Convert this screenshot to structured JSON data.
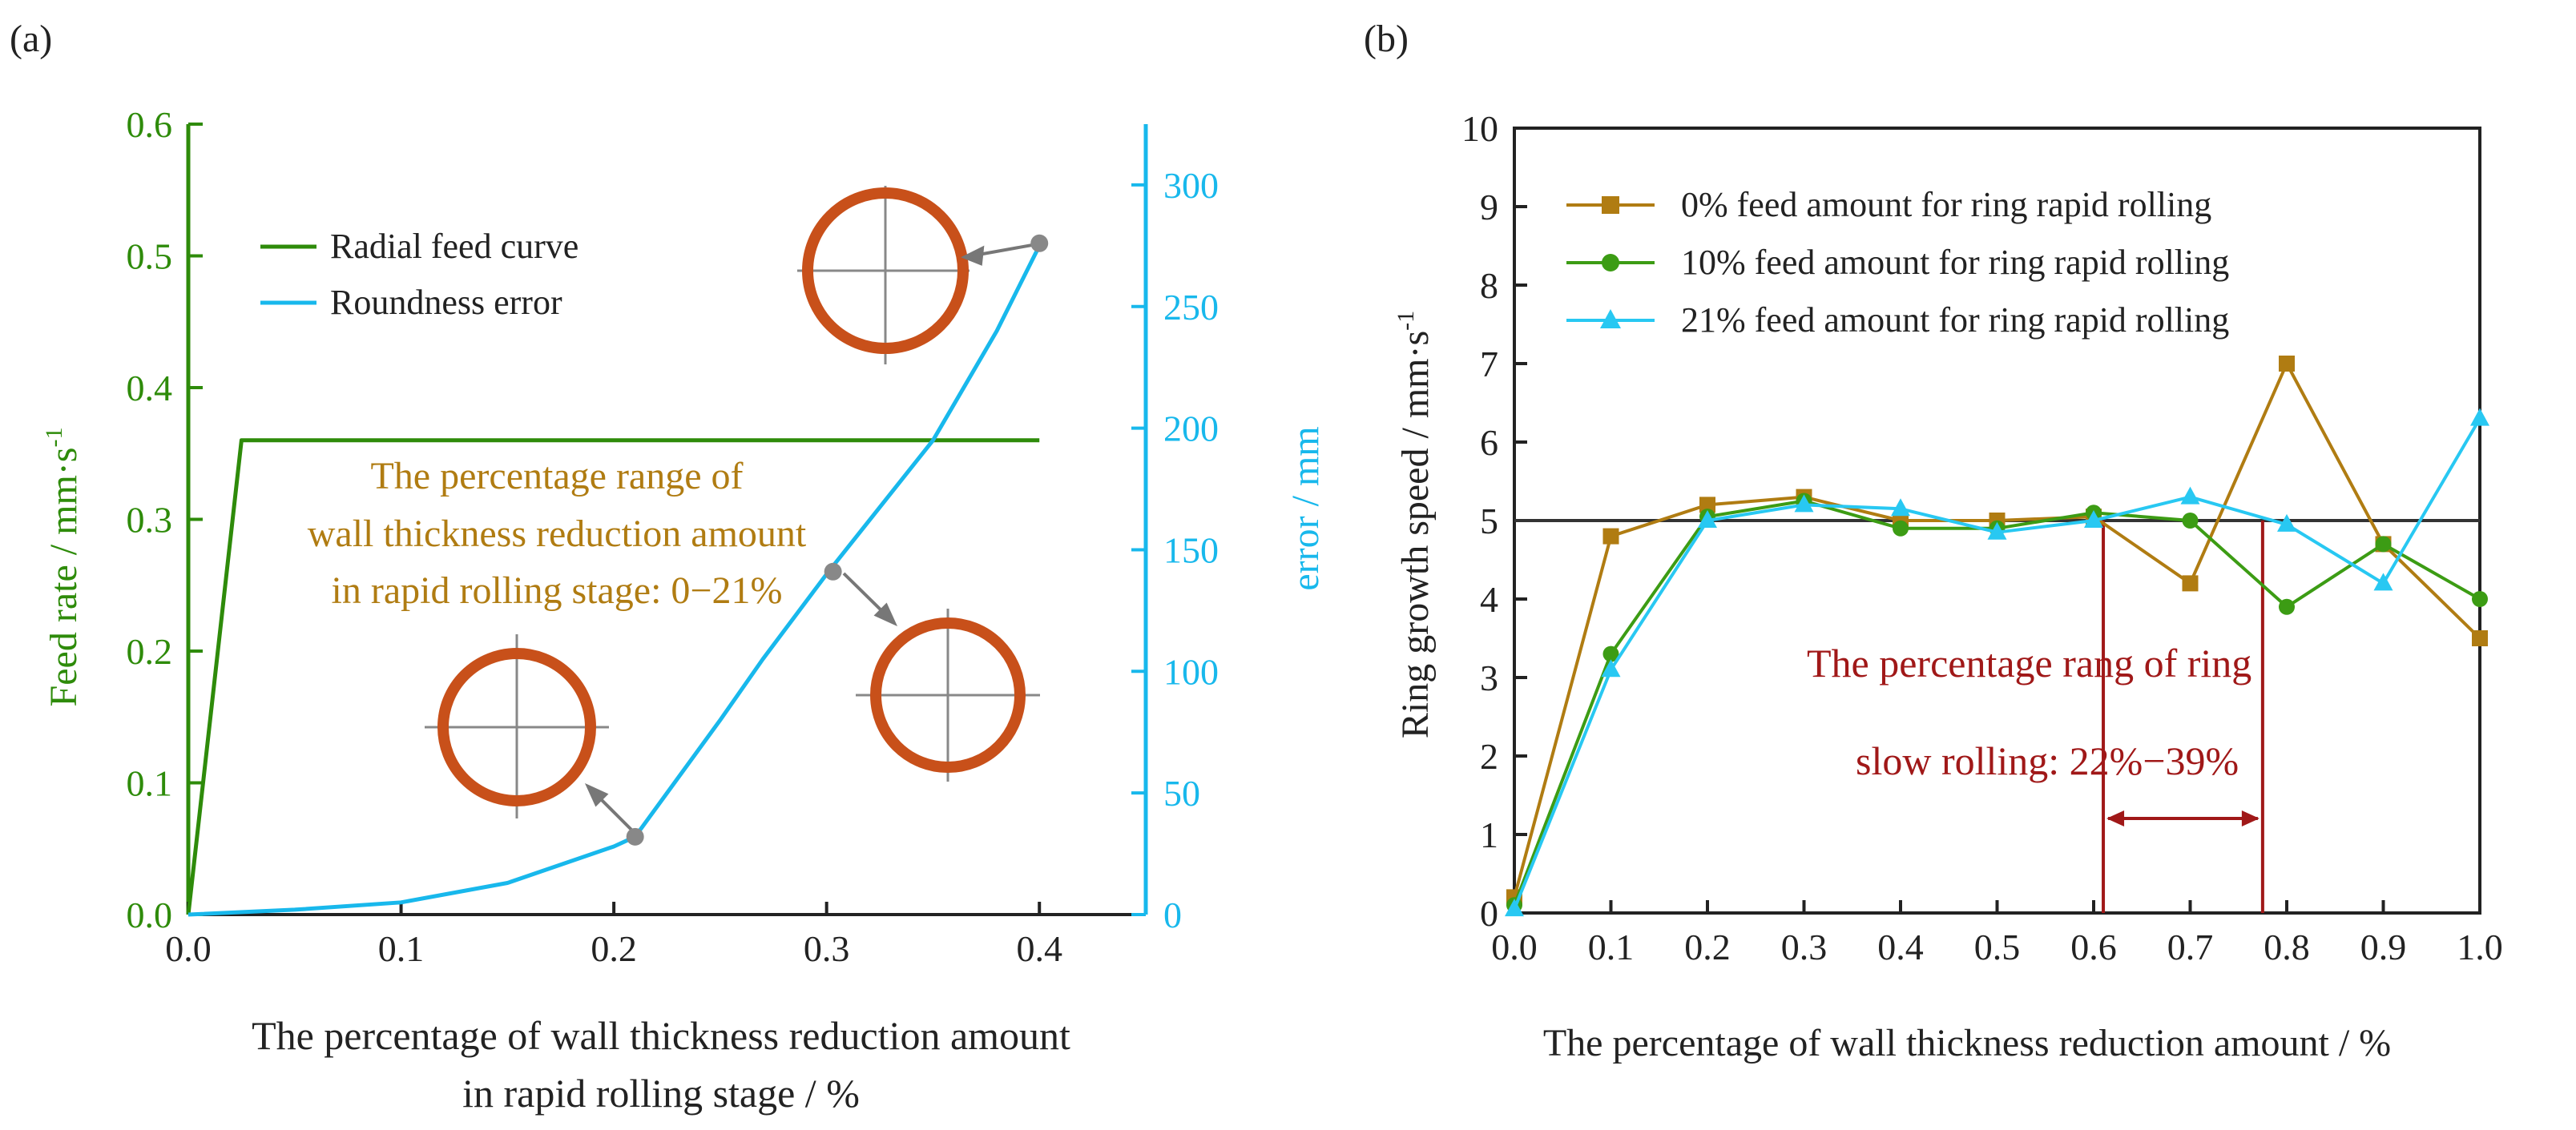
{
  "colors": {
    "feed": "#2e8b0a",
    "round": "#18b8ec",
    "annotA": "#b07c12",
    "annotB": "#a01818",
    "axis": "#222222",
    "ring": "#c8501a",
    "marker": "#888888",
    "s0": "#b07c12",
    "s10": "#3c9c14",
    "s21": "#28c8f2",
    "ref": "#333333"
  },
  "chart_data": [
    {
      "type": "line",
      "panel_label": "(a)",
      "xlabel_line1": "The percentage of wall thickness reduction amount",
      "xlabel_line2": "in rapid rolling stage / %",
      "ylabel": "Feed rate / mm·s",
      "ylabel_sup": "-1",
      "y2label": "error / mm",
      "xlim": [
        0.0,
        0.45
      ],
      "ylim": [
        0.0,
        0.6
      ],
      "y2lim": [
        0,
        325
      ],
      "x_ticks": [
        "0.0",
        "0.1",
        "0.2",
        "0.3",
        "0.4"
      ],
      "y_ticks": [
        "0.0",
        "0.1",
        "0.2",
        "0.3",
        "0.4",
        "0.5",
        "0.6"
      ],
      "y2_ticks": [
        "0",
        "50",
        "100",
        "150",
        "200",
        "250",
        "300"
      ],
      "legend": [
        "Radial feed curve",
        "Roundness error"
      ],
      "annotation": [
        "The percentage range of",
        "wall thickness reduction amount",
        "in rapid rolling stage: 0−21%"
      ],
      "series": [
        {
          "name": "Radial feed curve",
          "axis": "left",
          "x": [
            0.0,
            0.025,
            0.4
          ],
          "y": [
            0.0,
            0.36,
            0.36
          ]
        },
        {
          "name": "Roundness error",
          "axis": "right",
          "x": [
            0.0,
            0.05,
            0.1,
            0.15,
            0.2,
            0.21,
            0.25,
            0.27,
            0.3,
            0.35,
            0.38,
            0.4
          ],
          "y": [
            0,
            2,
            5,
            13,
            28,
            32,
            80,
            105,
            140,
            195,
            240,
            275
          ]
        }
      ],
      "markers": [
        {
          "x": 0.21,
          "y": 32
        },
        {
          "x": 0.303,
          "y": 141
        },
        {
          "x": 0.4,
          "y": 276
        }
      ]
    },
    {
      "type": "line",
      "panel_label": "(b)",
      "xlabel": "The percentage of wall thickness reduction amount / %",
      "ylabel": "Ring growth speed / mm·s",
      "ylabel_sup": "-1",
      "xlim": [
        0.0,
        1.0
      ],
      "ylim": [
        0,
        10
      ],
      "x_ticks": [
        "0.0",
        "0.1",
        "0.2",
        "0.3",
        "0.4",
        "0.5",
        "0.6",
        "0.7",
        "0.8",
        "0.9",
        "1.0"
      ],
      "y_ticks": [
        "0",
        "1",
        "2",
        "3",
        "4",
        "5",
        "6",
        "7",
        "8",
        "9",
        "10"
      ],
      "reference_line": 5.0,
      "annotation": [
        "The percentage rang of ring",
        "slow rolling: 22%−39%"
      ],
      "range_x": [
        0.61,
        0.775
      ],
      "x": [
        0.0,
        0.1,
        0.2,
        0.3,
        0.4,
        0.5,
        0.6,
        0.7,
        0.8,
        0.9,
        1.0
      ],
      "series": [
        {
          "name": "0% feed amount for ring rapid rolling",
          "marker": "square",
          "values": [
            0.2,
            4.8,
            5.2,
            5.3,
            5.0,
            5.0,
            5.05,
            4.2,
            7.0,
            4.7,
            3.5
          ]
        },
        {
          "name": "10% feed amount for ring rapid rolling",
          "marker": "circle",
          "values": [
            0.1,
            3.3,
            5.05,
            5.25,
            4.9,
            4.9,
            5.1,
            5.0,
            3.9,
            4.7,
            4.0
          ]
        },
        {
          "name": "21% feed amount for ring rapid rolling",
          "marker": "triangle",
          "values": [
            0.05,
            3.1,
            5.0,
            5.2,
            5.15,
            4.85,
            5.0,
            5.3,
            4.95,
            4.2,
            6.3
          ]
        }
      ]
    }
  ]
}
